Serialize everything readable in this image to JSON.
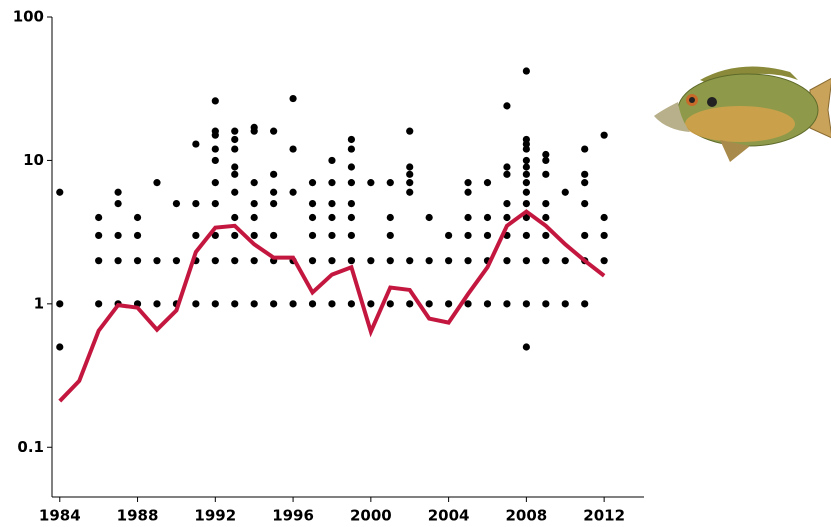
{
  "chart_data": {
    "type": "scatter",
    "log_y": true,
    "xlim": [
      1983.6,
      2014.05
    ],
    "ylim": [
      0.045,
      100
    ],
    "xticks": [
      1984,
      1988,
      1992,
      1996,
      2000,
      2004,
      2008,
      2012
    ],
    "yticks": [
      0.1,
      1,
      10,
      100
    ],
    "series": [
      {
        "type": "scatter",
        "color": "#000000",
        "x": [
          1984,
          1984,
          1984,
          1986,
          1986,
          1986,
          1986,
          1987,
          1987,
          1987,
          1987,
          1987,
          1988,
          1988,
          1988,
          1988,
          1989,
          1989,
          1989,
          1990,
          1990,
          1990,
          1991,
          1991,
          1991,
          1991,
          1991,
          1992,
          1992,
          1992,
          1992,
          1992,
          1992,
          1992,
          1992,
          1992,
          1992,
          1993,
          1993,
          1993,
          1993,
          1993,
          1993,
          1993,
          1993,
          1993,
          1993,
          1994,
          1994,
          1994,
          1994,
          1994,
          1994,
          1994,
          1994,
          1995,
          1995,
          1995,
          1995,
          1995,
          1995,
          1995,
          1996,
          1996,
          1996,
          1996,
          1996,
          1997,
          1997,
          1997,
          1997,
          1997,
          1997,
          1998,
          1998,
          1998,
          1998,
          1998,
          1998,
          1998,
          1999,
          1999,
          1999,
          1999,
          1999,
          1999,
          1999,
          1999,
          1999,
          2000,
          2000,
          2000,
          2001,
          2001,
          2001,
          2001,
          2001,
          2002,
          2002,
          2002,
          2002,
          2002,
          2002,
          2002,
          2003,
          2003,
          2003,
          2004,
          2004,
          2004,
          2005,
          2005,
          2005,
          2005,
          2005,
          2005,
          2006,
          2006,
          2006,
          2006,
          2006,
          2007,
          2007,
          2007,
          2007,
          2007,
          2007,
          2007,
          2007,
          2008,
          2008,
          2008,
          2008,
          2008,
          2008,
          2008,
          2008,
          2008,
          2008,
          2008,
          2008,
          2008,
          2008,
          2008,
          2009,
          2009,
          2009,
          2009,
          2009,
          2009,
          2009,
          2009,
          2010,
          2010,
          2010,
          2011,
          2011,
          2011,
          2011,
          2011,
          2011,
          2011,
          2012,
          2012,
          2012,
          2012
        ],
        "values": [
          6,
          1,
          0.5,
          4,
          3,
          2,
          1,
          6,
          5,
          3,
          2,
          1,
          4,
          3,
          2,
          1,
          7,
          2,
          1,
          5,
          2,
          1,
          13,
          5,
          3,
          2,
          1,
          26,
          16,
          15,
          12,
          10,
          7,
          5,
          3,
          2,
          1,
          16,
          14,
          12,
          9,
          8,
          6,
          4,
          3,
          2,
          1,
          17,
          16,
          7,
          5,
          4,
          3,
          2,
          1,
          16,
          8,
          6,
          5,
          3,
          2,
          1,
          27,
          12,
          6,
          2,
          1,
          7,
          5,
          4,
          3,
          2,
          1,
          10,
          7,
          5,
          4,
          3,
          2,
          1,
          14,
          12,
          9,
          7,
          5,
          4,
          3,
          2,
          1,
          7,
          2,
          1,
          7,
          4,
          3,
          2,
          1,
          16,
          9,
          8,
          7,
          6,
          2,
          1,
          4,
          2,
          1,
          3,
          2,
          1,
          7,
          6,
          4,
          3,
          2,
          1,
          7,
          4,
          3,
          2,
          1,
          24,
          9,
          8,
          5,
          4,
          3,
          2,
          1,
          42,
          14,
          13,
          12,
          10,
          9,
          8,
          7,
          6,
          5,
          4,
          3,
          2,
          1,
          0.5,
          11,
          10,
          8,
          5,
          4,
          3,
          2,
          1,
          6,
          2,
          1,
          12,
          8,
          7,
          5,
          3,
          2,
          1,
          15,
          4,
          3,
          2
        ]
      },
      {
        "type": "line",
        "color": "#c4173f",
        "x": [
          1984,
          1985,
          1986,
          1987,
          1988,
          1989,
          1990,
          1991,
          1992,
          1993,
          1994,
          1995,
          1996,
          1997,
          1998,
          1999,
          2000,
          2001,
          2002,
          2003,
          2004,
          2005,
          2006,
          2007,
          2008,
          2009,
          2010,
          2011,
          2012
        ],
        "values": [
          0.21,
          0.29,
          0.65,
          0.98,
          0.94,
          0.66,
          0.9,
          2.3,
          3.4,
          3.5,
          2.6,
          2.1,
          2.1,
          1.2,
          1.6,
          1.8,
          0.64,
          1.3,
          1.25,
          0.79,
          0.74,
          1.17,
          1.8,
          3.5,
          4.4,
          3.5,
          2.6,
          2.0,
          1.57
        ]
      }
    ]
  }
}
